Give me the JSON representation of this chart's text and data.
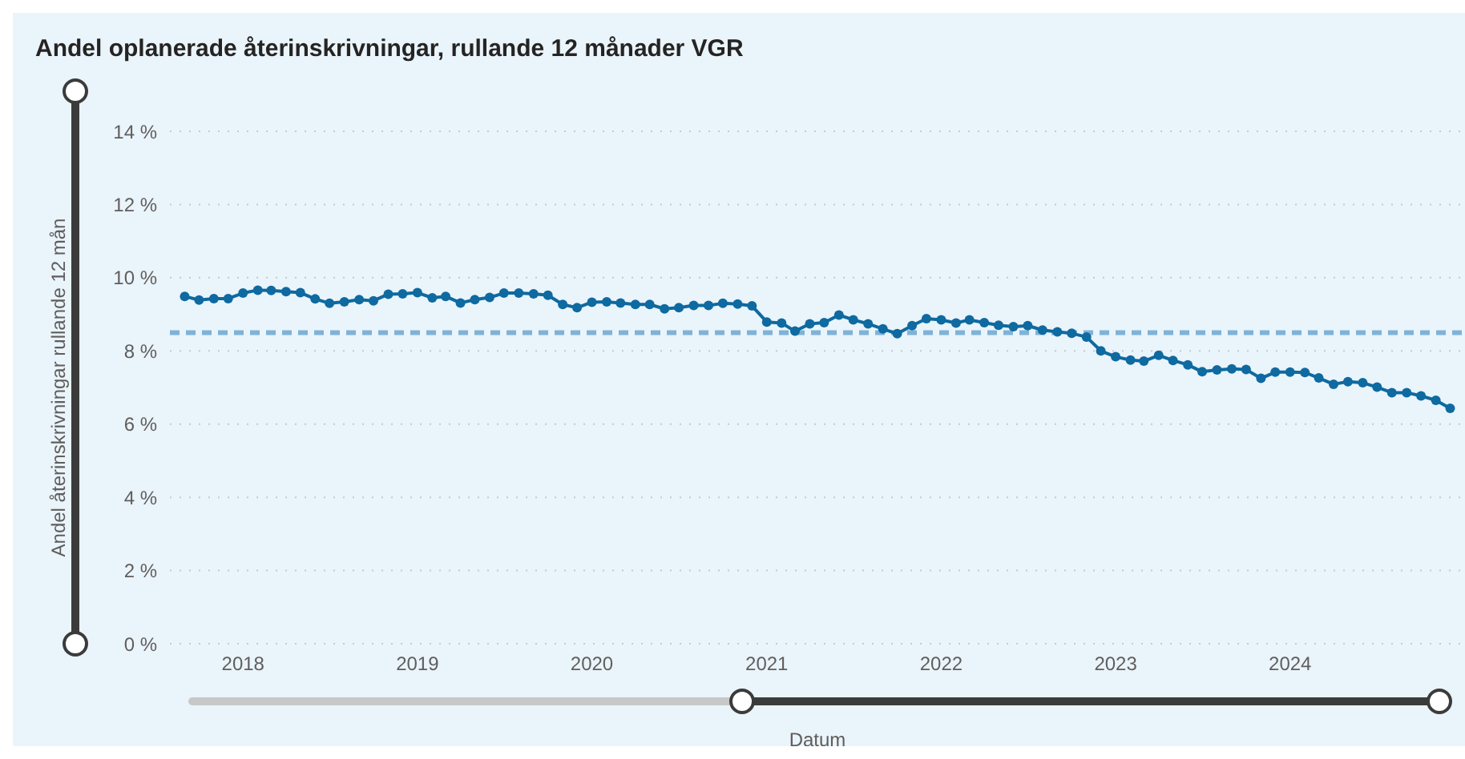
{
  "chart_data": {
    "type": "line",
    "title": "Andel oplanerade återinskrivningar, rullande 12 månader VGR",
    "xlabel": "Datum",
    "ylabel": "Andel återinskrivningar rullande 12 mån",
    "x": [
      "2017-09",
      "2017-10",
      "2017-11",
      "2017-12",
      "2018-01",
      "2018-02",
      "2018-03",
      "2018-04",
      "2018-05",
      "2018-06",
      "2018-07",
      "2018-08",
      "2018-09",
      "2018-10",
      "2018-11",
      "2018-12",
      "2019-01",
      "2019-02",
      "2019-03",
      "2019-04",
      "2019-05",
      "2019-06",
      "2019-07",
      "2019-08",
      "2019-09",
      "2019-10",
      "2019-11",
      "2019-12",
      "2020-01",
      "2020-02",
      "2020-03",
      "2020-04",
      "2020-05",
      "2020-06",
      "2020-07",
      "2020-08",
      "2020-09",
      "2020-10",
      "2020-11",
      "2020-12",
      "2021-01",
      "2021-02",
      "2021-03",
      "2021-04",
      "2021-05",
      "2021-06",
      "2021-07",
      "2021-08",
      "2021-09",
      "2021-10",
      "2021-11",
      "2021-12",
      "2022-01",
      "2022-02",
      "2022-03",
      "2022-04",
      "2022-05",
      "2022-06",
      "2022-07",
      "2022-08",
      "2022-09",
      "2022-10",
      "2022-11",
      "2022-12",
      "2023-01",
      "2023-02",
      "2023-03",
      "2023-04",
      "2023-05",
      "2023-06",
      "2023-07",
      "2023-08",
      "2023-09",
      "2023-10",
      "2023-11",
      "2023-12",
      "2024-01",
      "2024-02",
      "2024-03",
      "2024-04",
      "2024-05",
      "2024-06",
      "2024-07",
      "2024-08",
      "2024-09",
      "2024-10",
      "2024-11",
      "2024-12"
    ],
    "series": [
      {
        "color": "#0e6aa0",
        "values": [
          9.49,
          9.39,
          9.43,
          9.43,
          9.58,
          9.66,
          9.65,
          9.62,
          9.59,
          9.42,
          9.3,
          9.34,
          9.4,
          9.37,
          9.55,
          9.56,
          9.59,
          9.45,
          9.49,
          9.31,
          9.4,
          9.46,
          9.58,
          9.58,
          9.56,
          9.52,
          9.27,
          9.18,
          9.33,
          9.34,
          9.31,
          9.27,
          9.27,
          9.15,
          9.18,
          9.24,
          9.24,
          9.3,
          9.28,
          9.23,
          8.79,
          8.76,
          8.54,
          8.74,
          8.77,
          8.98,
          8.85,
          8.74,
          8.6,
          8.47,
          8.69,
          8.88,
          8.85,
          8.76,
          8.85,
          8.77,
          8.7,
          8.66,
          8.69,
          8.57,
          8.52,
          8.48,
          8.38,
          8.0,
          7.84,
          7.75,
          7.72,
          7.88,
          7.74,
          7.62,
          7.43,
          7.48,
          7.51,
          7.49,
          7.25,
          7.42,
          7.42,
          7.41,
          7.26,
          7.09,
          7.16,
          7.13,
          7.01,
          6.86,
          6.86,
          6.77,
          6.65,
          6.43
        ]
      }
    ],
    "xlim": [
      "2017-08",
      "2025-01"
    ],
    "xticks": [
      "2018",
      "2019",
      "2020",
      "2021",
      "2022",
      "2023",
      "2024"
    ],
    "ylim": [
      0,
      14
    ],
    "yticks": [
      {
        "value": 0,
        "label": "0 %"
      },
      {
        "value": 2,
        "label": "2 %"
      },
      {
        "value": 4,
        "label": "4 %"
      },
      {
        "value": 6,
        "label": "6 %"
      },
      {
        "value": 8,
        "label": "8 %"
      },
      {
        "value": 10,
        "label": "10 %"
      },
      {
        "value": 12,
        "label": "12 %"
      },
      {
        "value": 14,
        "label": "14 %"
      }
    ],
    "ref_lines": [
      {
        "axis": "y",
        "value": 8.5,
        "color": "#7fb2d6",
        "line_style": "dashed"
      }
    ],
    "grid": "y",
    "marker": "circle",
    "line_style": "solid"
  }
}
